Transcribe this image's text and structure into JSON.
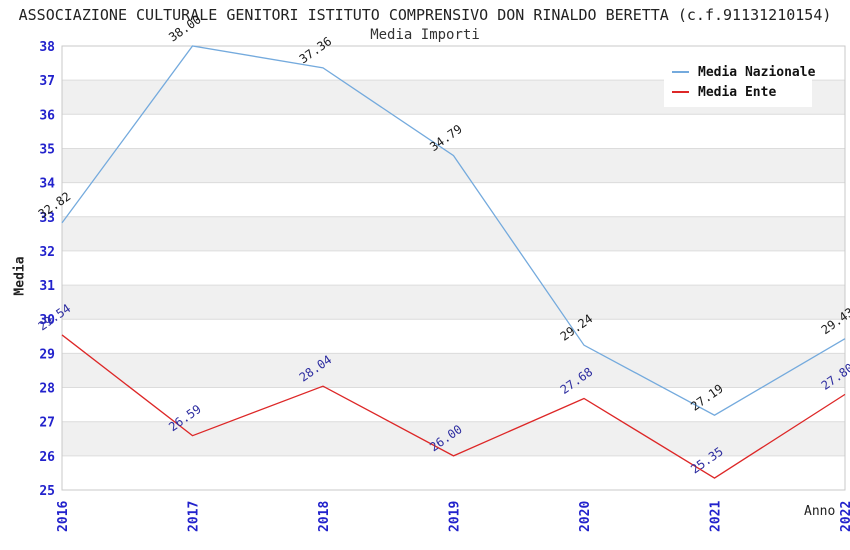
{
  "title": "ASSOCIAZIONE CULTURALE GENITORI ISTITUTO COMPRENSIVO DON RINALDO BERETTA (c.f.91131210154)",
  "subtitle": "Media Importi",
  "legend": [
    {
      "label": "Media Nazionale",
      "color": "#74aadd"
    },
    {
      "label": "Media Ente",
      "color": "#dd2727"
    }
  ],
  "colors": {
    "background": "#ffffff",
    "band": "#f0f0f0",
    "grid": "#dcdcdc",
    "border": "#c9c9c9",
    "tick_label": "#2222cc",
    "title_text": "#222222"
  },
  "chart_data": {
    "type": "line",
    "x": [
      2016,
      2017,
      2018,
      2019,
      2020,
      2021,
      2022
    ],
    "xlabel": "Anno",
    "ylabel": "Media",
    "ylim": [
      25,
      38
    ],
    "ytick_step": 1,
    "grid": "horizontal gridlines with alternating gray bands",
    "legend_position": "top-right",
    "series": [
      {
        "name": "Media Nazionale",
        "color": "#74aadd",
        "label_color": "#1c1c1c",
        "values": [
          32.82,
          38.0,
          37.36,
          34.79,
          29.24,
          27.19,
          29.43
        ]
      },
      {
        "name": "Media Ente",
        "color": "#dd2727",
        "label_color": "#2d2da0",
        "values": [
          29.54,
          26.59,
          28.04,
          26.0,
          27.68,
          25.35,
          27.8
        ]
      }
    ]
  }
}
